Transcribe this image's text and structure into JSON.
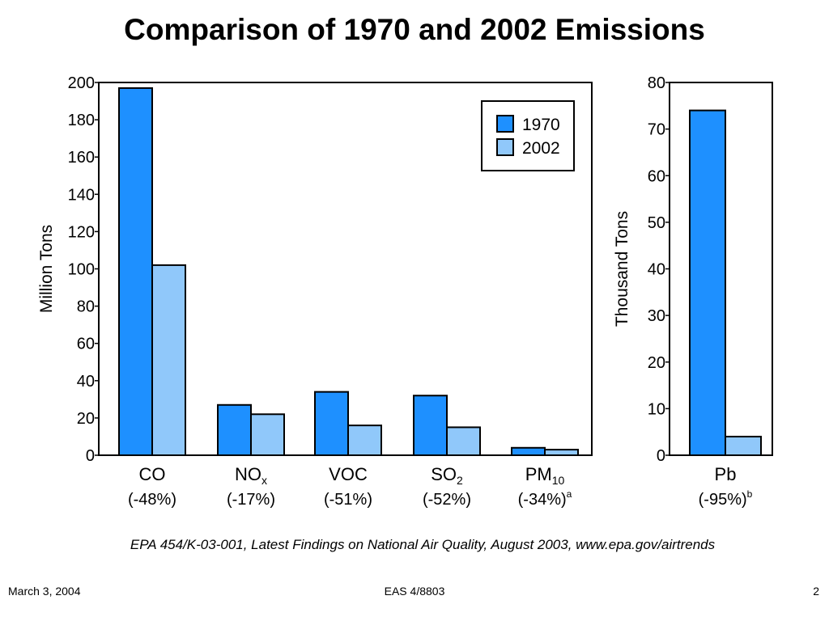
{
  "title": "Comparison of 1970 and 2002 Emissions",
  "source": "EPA 454/K-03-001, Latest Findings on National Air Quality, August 2003, www.epa.gov/airtrends",
  "footer": {
    "date": "March 3, 2004",
    "course": "EAS 4/8803",
    "page": "2"
  },
  "colors": {
    "series_1970": "#1e90ff",
    "series_2002": "#90c8fa"
  },
  "chart_data": [
    {
      "type": "bar",
      "ylabel": "Million Tons",
      "ylim": [
        0,
        200
      ],
      "yticks": [
        0,
        20,
        40,
        60,
        80,
        100,
        120,
        140,
        160,
        180,
        200
      ],
      "legend_position": "top-right",
      "categories": [
        {
          "name": "CO",
          "sub": "",
          "change": "(-48%)",
          "note": ""
        },
        {
          "name": "NO",
          "sub": "x",
          "change": "(-17%)",
          "note": ""
        },
        {
          "name": "VOC",
          "sub": "",
          "change": "(-51%)",
          "note": ""
        },
        {
          "name": "SO",
          "sub": "2",
          "change": "(-52%)",
          "note": ""
        },
        {
          "name": "PM",
          "sub": "10",
          "change": "(-34%)",
          "note": "a"
        }
      ],
      "series": [
        {
          "name": "1970",
          "values": [
            197,
            27,
            34,
            32,
            4
          ]
        },
        {
          "name": "2002",
          "values": [
            102,
            22,
            16,
            15,
            3
          ]
        }
      ]
    },
    {
      "type": "bar",
      "ylabel": "Thousand Tons",
      "ylim": [
        0,
        80
      ],
      "yticks": [
        0,
        10,
        20,
        30,
        40,
        50,
        60,
        70,
        80
      ],
      "categories": [
        {
          "name": "Pb",
          "sub": "",
          "change": "(-95%)",
          "note": "b"
        }
      ],
      "series": [
        {
          "name": "1970",
          "values": [
            74
          ]
        },
        {
          "name": "2002",
          "values": [
            4
          ]
        }
      ]
    }
  ]
}
